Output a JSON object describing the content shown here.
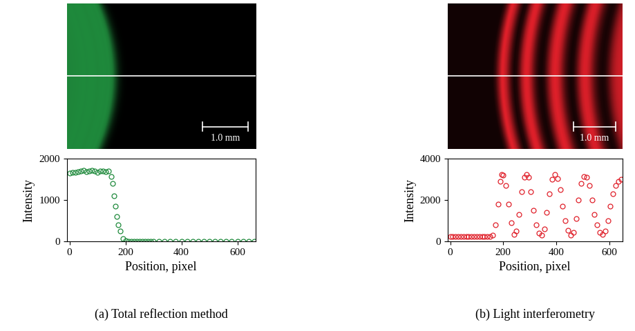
{
  "chart_data": [
    {
      "type": "scatter",
      "title": "(a) Total reflection method",
      "x_label": "Position, pixel",
      "y_label": "Intensity",
      "annotations": [
        "1.0 mm"
      ],
      "xlim": [
        -10,
        665
      ],
      "xticks": [
        0,
        200,
        400,
        600
      ],
      "ylim": [
        0,
        2000
      ],
      "yticks": [
        0,
        1000,
        2000
      ],
      "series": [
        {
          "color": "#1f8a3c",
          "marker": "open_circle",
          "line_style": "none",
          "x": [
            0,
            10,
            20,
            30,
            40,
            50,
            60,
            70,
            80,
            90,
            100,
            110,
            120,
            130,
            140,
            150,
            155,
            160,
            165,
            170,
            175,
            180,
            190,
            200,
            210,
            220,
            230,
            240,
            250,
            260,
            270,
            280,
            290,
            300,
            320,
            340,
            360,
            380,
            400,
            420,
            440,
            460,
            480,
            500,
            520,
            540,
            560,
            580,
            600,
            620,
            640,
            660
          ],
          "values": [
            1660,
            1670,
            1680,
            1690,
            1700,
            1720,
            1690,
            1710,
            1720,
            1700,
            1680,
            1700,
            1710,
            1690,
            1700,
            1580,
            1400,
            1100,
            850,
            600,
            400,
            250,
            80,
            20,
            5,
            0,
            0,
            0,
            0,
            0,
            0,
            0,
            0,
            0,
            0,
            0,
            0,
            0,
            0,
            0,
            0,
            0,
            0,
            0,
            0,
            0,
            0,
            0,
            0,
            0,
            0,
            0
          ]
        }
      ]
    },
    {
      "type": "scatter",
      "title": "(b) Light interferometry",
      "x_label": "Position, pixel",
      "y_label": "Intensity",
      "annotations": [
        "1.0 mm"
      ],
      "xlim": [
        -10,
        650
      ],
      "xticks": [
        0,
        200,
        400,
        600
      ],
      "ylim": [
        0,
        4000
      ],
      "yticks": [
        0,
        2000,
        4000
      ],
      "series": [
        {
          "color": "#e0202a",
          "marker": "open_circle",
          "line_style": "none",
          "x": [
            0,
            10,
            20,
            30,
            40,
            50,
            60,
            70,
            80,
            90,
            100,
            110,
            120,
            130,
            140,
            150,
            160,
            170,
            180,
            190,
            195,
            200,
            210,
            220,
            230,
            240,
            250,
            260,
            270,
            280,
            287,
            295,
            305,
            315,
            325,
            335,
            345,
            355,
            365,
            375,
            385,
            395,
            405,
            415,
            425,
            435,
            445,
            455,
            465,
            475,
            485,
            495,
            505,
            515,
            525,
            535,
            545,
            555,
            565,
            575,
            585,
            595,
            605,
            615,
            625,
            635,
            645
          ],
          "values": [
            250,
            250,
            250,
            250,
            250,
            250,
            250,
            250,
            250,
            250,
            250,
            250,
            250,
            250,
            250,
            250,
            300,
            800,
            1800,
            2900,
            3250,
            3200,
            2700,
            1800,
            900,
            350,
            500,
            1300,
            2400,
            3100,
            3250,
            3100,
            2400,
            1500,
            800,
            400,
            300,
            600,
            1400,
            2300,
            3000,
            3250,
            3050,
            2500,
            1700,
            1000,
            550,
            300,
            450,
            1100,
            2000,
            2800,
            3150,
            3100,
            2700,
            2000,
            1300,
            800,
            450,
            350,
            500,
            1000,
            1700,
            2300,
            2700,
            2900,
            3000
          ]
        }
      ]
    }
  ]
}
